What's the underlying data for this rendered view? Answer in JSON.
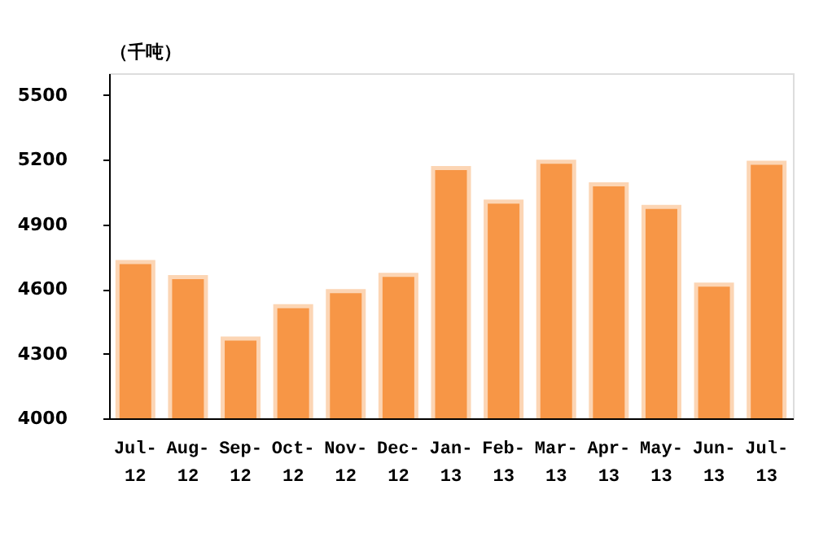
{
  "chart_data": {
    "type": "bar",
    "ylabel": "（千吨）",
    "categories": [
      "Jul-12",
      "Aug-12",
      "Sep-12",
      "Oct-12",
      "Nov-12",
      "Dec-12",
      "Jan-13",
      "Feb-13",
      "Mar-13",
      "Apr-13",
      "May-13",
      "Jun-13",
      "Jul-13"
    ],
    "values": [
      4725,
      4655,
      4370,
      4520,
      4590,
      4665,
      5160,
      5005,
      5190,
      5085,
      4980,
      4620,
      5185
    ],
    "color": "#f79646",
    "ylim": [
      4000,
      5600
    ],
    "yticks": [
      4000,
      4300,
      4600,
      4900,
      5200,
      5500
    ],
    "grid": false
  }
}
